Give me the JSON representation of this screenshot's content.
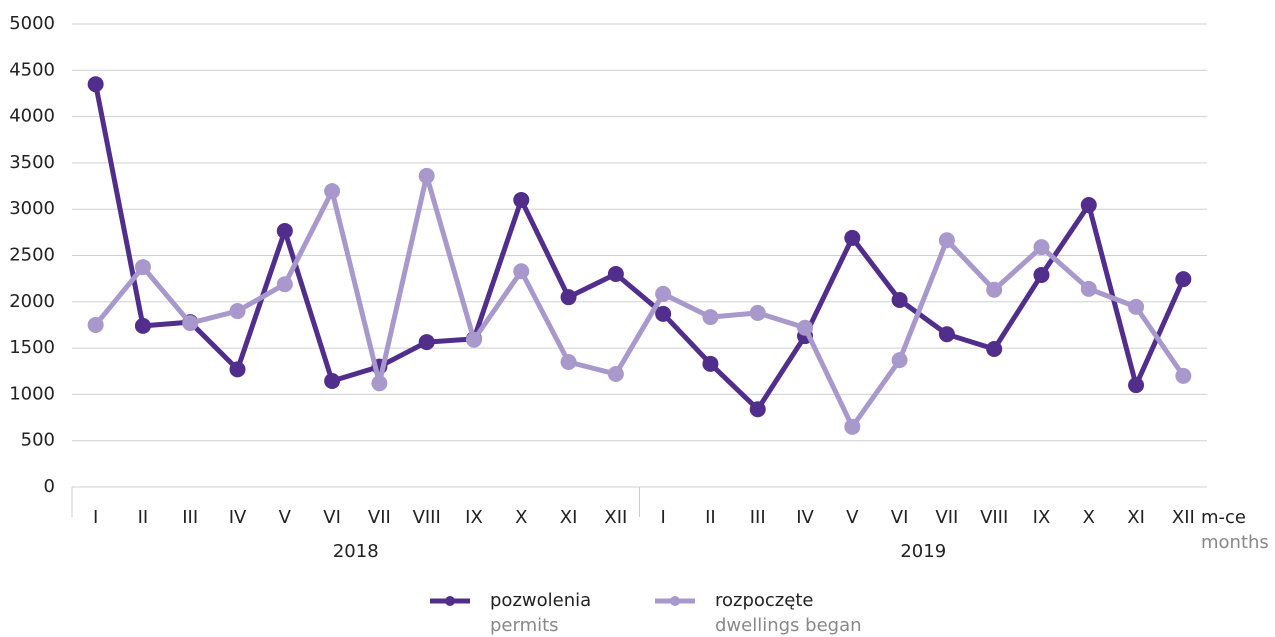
{
  "chart_data": {
    "type": "line",
    "categories": [
      "I",
      "II",
      "III",
      "IV",
      "V",
      "VI",
      "VII",
      "VIII",
      "IX",
      "X",
      "XI",
      "XII",
      "I",
      "II",
      "III",
      "IV",
      "V",
      "VI",
      "VII",
      "VIII",
      "IX",
      "X",
      "XI",
      "XII"
    ],
    "years": [
      "2018",
      "2019"
    ],
    "x_label": "m-ce",
    "x_label_en": "months",
    "ylim": [
      0,
      5000
    ],
    "yticks": [
      0,
      500,
      1000,
      1500,
      2000,
      2500,
      3000,
      3500,
      4000,
      4500,
      5000
    ],
    "grid": true,
    "series": [
      {
        "name": "pozwolenia",
        "name_en": "permits",
        "color": "#512d8c",
        "values": [
          4350,
          1740,
          1780,
          1270,
          2765,
          1145,
          1300,
          1565,
          1600,
          3100,
          2050,
          2300,
          1870,
          1330,
          840,
          1630,
          2690,
          2020,
          1650,
          1490,
          2290,
          3045,
          1100,
          2245
        ]
      },
      {
        "name": "rozpoczęte",
        "name_en": "dwellings began",
        "color": "#a898cc",
        "values": [
          1750,
          2375,
          1770,
          1900,
          2190,
          3195,
          1120,
          3360,
          1590,
          2330,
          1350,
          1220,
          2085,
          1835,
          1880,
          1720,
          650,
          1370,
          2665,
          2130,
          2590,
          2140,
          1945,
          1200
        ]
      }
    ]
  }
}
